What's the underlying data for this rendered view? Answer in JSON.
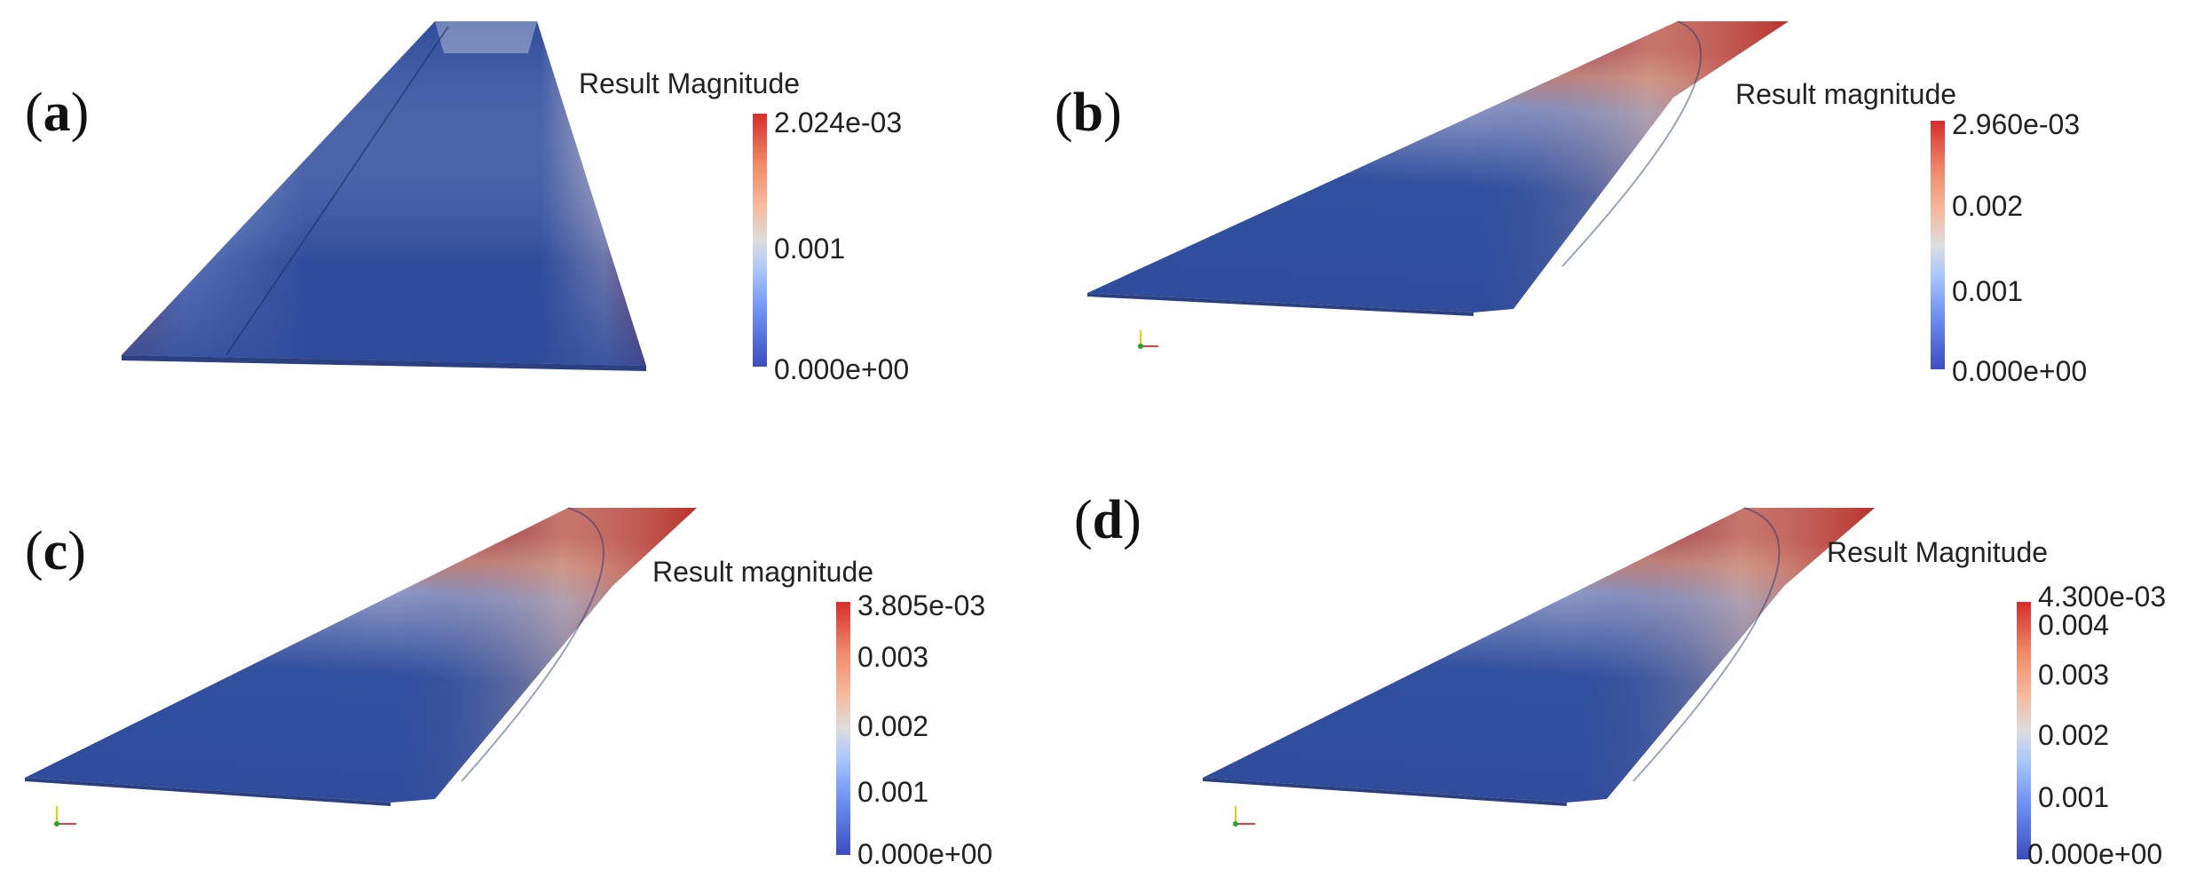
{
  "panels": [
    {
      "label": "a",
      "title": "Result Magnitude",
      "max": "2.024e-03",
      "ticks": [
        "0.001"
      ],
      "min": "0.000e+00"
    },
    {
      "label": "b",
      "title": "Result magnitude",
      "max": "2.960e-03",
      "ticks": [
        "0.002",
        "0.001"
      ],
      "min": "0.000e+00"
    },
    {
      "label": "c",
      "title": "Result magnitude",
      "max": "3.805e-03",
      "ticks": [
        "0.003",
        "0.002",
        "0.001"
      ],
      "min": "0.000e+00"
    },
    {
      "label": "d",
      "title": "Result Magnitude",
      "max": "4.300e-03",
      "ticks": [
        "0.004",
        "0.003",
        "0.002",
        "0.001"
      ],
      "min": "0.000e+00"
    }
  ],
  "colors": {
    "low": "#3b4cc0",
    "mid": "#dddddd",
    "high": "#d62d2d"
  }
}
